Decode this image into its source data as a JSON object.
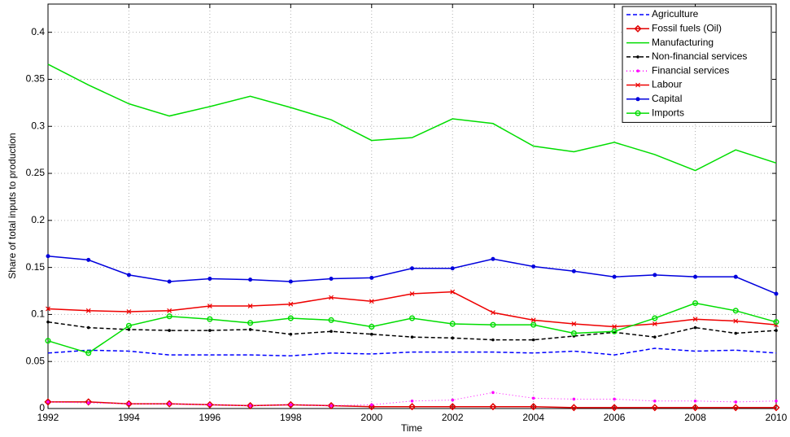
{
  "chart_data": {
    "type": "line",
    "x_label": "Time",
    "y_label": "Share of total inputs to production",
    "x": [
      1992,
      1993,
      1994,
      1995,
      1996,
      1997,
      1998,
      1999,
      2000,
      2001,
      2002,
      2003,
      2004,
      2005,
      2006,
      2007,
      2008,
      2009,
      2010
    ],
    "xlim": [
      1992,
      2010
    ],
    "xticks": [
      1992,
      1994,
      1996,
      1998,
      2000,
      2002,
      2004,
      2006,
      2008,
      2010
    ],
    "ylim": [
      0,
      0.43
    ],
    "yticks": [
      0,
      0.05,
      0.1,
      0.15,
      0.2,
      0.25,
      0.3,
      0.35,
      0.4
    ],
    "grid": true,
    "legend": "top-right",
    "series": [
      {
        "name": "Agriculture",
        "color": "#0000ff",
        "dash": "dashed",
        "marker": "none",
        "values": [
          0.059,
          0.062,
          0.061,
          0.057,
          0.057,
          0.057,
          0.056,
          0.059,
          0.058,
          0.06,
          0.06,
          0.06,
          0.059,
          0.061,
          0.057,
          0.064,
          0.061,
          0.062,
          0.059
        ]
      },
      {
        "name": "Fossil fuels (Oil)",
        "color": "#e00000",
        "dash": "solid",
        "marker": "diamond",
        "values": [
          0.007,
          0.007,
          0.005,
          0.005,
          0.004,
          0.003,
          0.004,
          0.003,
          0.002,
          0.002,
          0.002,
          0.002,
          0.002,
          0.001,
          0.001,
          0.001,
          0.001,
          0.001,
          0.001
        ]
      },
      {
        "name": "Manufacturing",
        "color": "#00dd00",
        "dash": "solid",
        "marker": "none",
        "values": [
          0.366,
          0.344,
          0.324,
          0.311,
          0.321,
          0.332,
          0.32,
          0.307,
          0.285,
          0.288,
          0.308,
          0.303,
          0.279,
          0.273,
          0.283,
          0.27,
          0.253,
          0.275,
          0.261
        ]
      },
      {
        "name": "Non-financial services",
        "color": "#000000",
        "dash": "dashed",
        "marker": "dot",
        "values": [
          0.092,
          0.086,
          0.084,
          0.083,
          0.083,
          0.084,
          0.079,
          0.082,
          0.079,
          0.076,
          0.075,
          0.073,
          0.073,
          0.077,
          0.081,
          0.076,
          0.086,
          0.08,
          0.083
        ]
      },
      {
        "name": "Financial services",
        "color": "#ff00ff",
        "dash": "dotted",
        "marker": "dot",
        "values": [
          0.007,
          0.006,
          0.005,
          0.005,
          0.004,
          0.003,
          0.004,
          0.003,
          0.004,
          0.008,
          0.009,
          0.017,
          0.011,
          0.01,
          0.01,
          0.008,
          0.008,
          0.007,
          0.008
        ]
      },
      {
        "name": "Labour",
        "color": "#ee0000",
        "dash": "solid",
        "marker": "x",
        "values": [
          0.106,
          0.104,
          0.103,
          0.104,
          0.109,
          0.109,
          0.111,
          0.118,
          0.114,
          0.122,
          0.124,
          0.102,
          0.094,
          0.09,
          0.087,
          0.09,
          0.095,
          0.093,
          0.089
        ]
      },
      {
        "name": "Capital",
        "color": "#0000dd",
        "dash": "solid",
        "marker": "circle-filled",
        "values": [
          0.162,
          0.158,
          0.142,
          0.135,
          0.138,
          0.137,
          0.135,
          0.138,
          0.139,
          0.149,
          0.149,
          0.159,
          0.151,
          0.146,
          0.14,
          0.142,
          0.14,
          0.14,
          0.122
        ]
      },
      {
        "name": "Imports",
        "color": "#00dd00",
        "dash": "solid",
        "marker": "circle-open",
        "values": [
          0.072,
          0.059,
          0.088,
          0.098,
          0.095,
          0.091,
          0.096,
          0.094,
          0.087,
          0.096,
          0.09,
          0.089,
          0.089,
          0.08,
          0.082,
          0.096,
          0.112,
          0.104,
          0.092
        ]
      }
    ]
  }
}
